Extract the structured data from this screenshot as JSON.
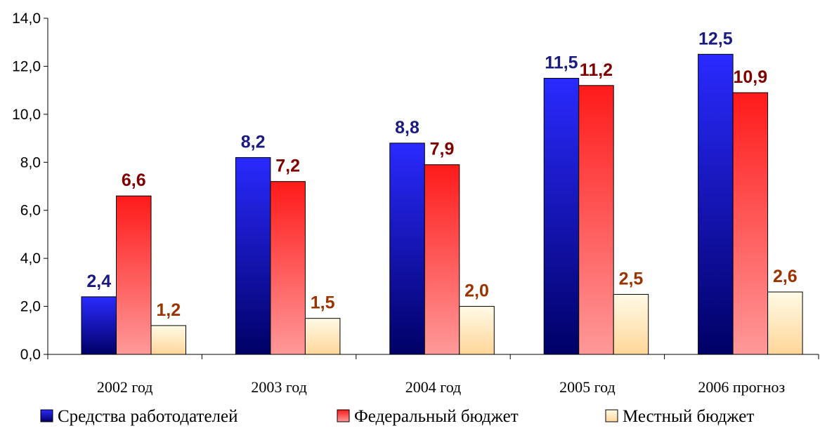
{
  "chart_data": {
    "type": "bar",
    "title": "",
    "xlabel": "",
    "ylabel": "",
    "ylim": [
      0,
      14
    ],
    "y_ticks": [
      "0,0",
      "2,0",
      "4,0",
      "6,0",
      "8,0",
      "10,0",
      "12,0",
      "14,0"
    ],
    "categories": [
      "2002 год",
      "2003 год",
      "2004 год",
      "2005 год",
      "2006 прогноз"
    ],
    "grid": false,
    "legend_position": "bottom",
    "series": [
      {
        "name": "Средства работодателей",
        "values": [
          2.4,
          8.2,
          8.8,
          11.5,
          12.5
        ],
        "labels": [
          "2,4",
          "8,2",
          "8,8",
          "11,5",
          "12,5"
        ],
        "color_top": "#2a2aff",
        "color_bottom": "#000066",
        "label_color": "#1a1a80"
      },
      {
        "name": "Федеральный бюджет",
        "values": [
          6.6,
          7.2,
          7.9,
          11.2,
          10.9
        ],
        "labels": [
          "6,6",
          "7,2",
          "7,9",
          "11,2",
          "10,9"
        ],
        "color_top": "#ff1a1a",
        "color_bottom": "#ff9999",
        "label_color": "#800000"
      },
      {
        "name": "Местный бюджет",
        "values": [
          1.2,
          1.5,
          2.0,
          2.5,
          2.6
        ],
        "labels": [
          "1,2",
          "1,5",
          "2,0",
          "2,5",
          "2,6"
        ],
        "color_top": "#fffae6",
        "color_bottom": "#ffd699",
        "label_color": "#993300"
      }
    ]
  }
}
